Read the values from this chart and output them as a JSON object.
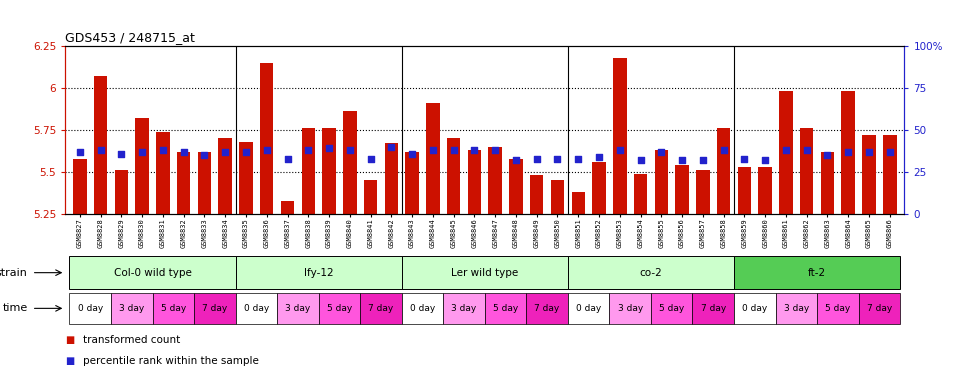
{
  "title": "GDS453 / 248715_at",
  "samples": [
    "GSM8827",
    "GSM8828",
    "GSM8829",
    "GSM8830",
    "GSM8831",
    "GSM8832",
    "GSM8833",
    "GSM8834",
    "GSM8835",
    "GSM8836",
    "GSM8837",
    "GSM8838",
    "GSM8839",
    "GSM8840",
    "GSM8841",
    "GSM8842",
    "GSM8843",
    "GSM8844",
    "GSM8845",
    "GSM8846",
    "GSM8847",
    "GSM8848",
    "GSM8849",
    "GSM8850",
    "GSM8851",
    "GSM8852",
    "GSM8853",
    "GSM8854",
    "GSM8855",
    "GSM8856",
    "GSM8857",
    "GSM8858",
    "GSM8859",
    "GSM8860",
    "GSM8861",
    "GSM8862",
    "GSM8863",
    "GSM8864",
    "GSM8865",
    "GSM8866"
  ],
  "bar_values": [
    5.58,
    6.07,
    5.51,
    5.82,
    5.74,
    5.62,
    5.62,
    5.7,
    5.68,
    6.15,
    5.33,
    5.76,
    5.76,
    5.86,
    5.45,
    5.67,
    5.62,
    5.91,
    5.7,
    5.63,
    5.65,
    5.58,
    5.48,
    5.45,
    5.38,
    5.56,
    6.18,
    5.49,
    5.63,
    5.54,
    5.51,
    5.76,
    5.53,
    5.53,
    5.98,
    5.76,
    5.62,
    5.98,
    5.72,
    5.72
  ],
  "blue_values": [
    5.62,
    5.63,
    5.61,
    5.62,
    5.63,
    5.62,
    5.6,
    5.62,
    5.62,
    5.63,
    5.58,
    5.63,
    5.64,
    5.63,
    5.58,
    5.65,
    5.61,
    5.63,
    5.63,
    5.63,
    5.63,
    5.57,
    5.58,
    5.58,
    5.58,
    5.59,
    5.63,
    5.57,
    5.62,
    5.57,
    5.57,
    5.63,
    5.58,
    5.57,
    5.63,
    5.63,
    5.6,
    5.62,
    5.62,
    5.62
  ],
  "ylim_min": 5.25,
  "ylim_max": 6.25,
  "yticks": [
    5.25,
    5.5,
    5.75,
    6.0,
    6.25
  ],
  "ytick_labels": [
    "5.25",
    "5.5",
    "5.75",
    "6",
    "6.25"
  ],
  "right_yticks": [
    0,
    25,
    50,
    75,
    100
  ],
  "right_ytick_labels": [
    "0",
    "25",
    "50",
    "75",
    "100%"
  ],
  "bar_color": "#CC1100",
  "blue_color": "#2222CC",
  "strain_labels": [
    "Col-0 wild type",
    "lfy-12",
    "Ler wild type",
    "co-2",
    "ft-2"
  ],
  "strain_colors": [
    "#CCFFCC",
    "#CCFFCC",
    "#CCFFCC",
    "#CCFFCC",
    "#55CC55"
  ],
  "time_labels": [
    "0 day",
    "3 day",
    "5 day",
    "7 day"
  ],
  "time_colors": [
    "#FFFFFF",
    "#FF99EE",
    "#FF55DD",
    "#EE22BB"
  ],
  "dotted_lines": [
    5.5,
    5.75,
    6.0
  ],
  "strain_boundaries": [
    8,
    16,
    24,
    32
  ]
}
